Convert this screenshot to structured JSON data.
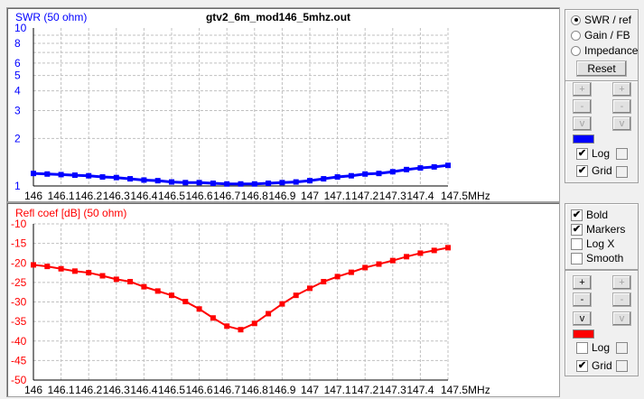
{
  "title": "gtv2_6m_mod146_5mhz.out",
  "colors": {
    "swr": "#0000ff",
    "refl": "#ff0000"
  },
  "chart_data": [
    {
      "type": "line",
      "title": "gtv2_6m_mod146_5mhz.out",
      "ylabel": "SWR (50 ohm)",
      "xlabel": "MHz",
      "yscale": "log",
      "ylim": [
        1,
        10
      ],
      "yticks": [
        1,
        2,
        3,
        4,
        5,
        6,
        8,
        10
      ],
      "ygrid": [
        2,
        3,
        4,
        5,
        6,
        7,
        8,
        9
      ],
      "xticks": [
        "146",
        "146.1",
        "146.2",
        "146.3",
        "146.4",
        "146.5",
        "146.6",
        "146.7",
        "146.8",
        "146.9",
        "147",
        "147.1",
        "147.2",
        "147.3",
        "147.4",
        "147.5"
      ],
      "xlim": [
        146,
        147.5
      ],
      "x_last_label": "147.5MHz",
      "x": [
        146,
        146.05,
        146.1,
        146.15,
        146.2,
        146.25,
        146.3,
        146.35,
        146.4,
        146.45,
        146.5,
        146.55,
        146.6,
        146.65,
        146.7,
        146.75,
        146.8,
        146.85,
        146.9,
        146.95,
        147,
        147.05,
        147.1,
        147.15,
        147.2,
        147.25,
        147.3,
        147.35,
        147.4,
        147.45,
        147.5
      ],
      "values": [
        1.2,
        1.19,
        1.18,
        1.17,
        1.16,
        1.14,
        1.13,
        1.11,
        1.09,
        1.08,
        1.06,
        1.05,
        1.05,
        1.04,
        1.03,
        1.03,
        1.03,
        1.04,
        1.05,
        1.06,
        1.08,
        1.11,
        1.14,
        1.16,
        1.19,
        1.2,
        1.23,
        1.27,
        1.3,
        1.32,
        1.35
      ]
    },
    {
      "type": "line",
      "ylabel": "Refl coef [dB] (50 ohm)",
      "xlabel": "MHz",
      "ylim": [
        -50,
        -10
      ],
      "yticks": [
        -10,
        -15,
        -20,
        -25,
        -30,
        -35,
        -40,
        -45,
        -50
      ],
      "xticks": [
        "146",
        "146.1",
        "146.2",
        "146.3",
        "146.4",
        "146.5",
        "146.6",
        "146.7",
        "146.8",
        "146.9",
        "147",
        "147.1",
        "147.2",
        "147.3",
        "147.4",
        "147.5"
      ],
      "xlim": [
        146,
        147.5
      ],
      "x_last_label": "147.5MHz",
      "x": [
        146,
        146.05,
        146.1,
        146.15,
        146.2,
        146.25,
        146.3,
        146.35,
        146.4,
        146.45,
        146.5,
        146.55,
        146.6,
        146.65,
        146.7,
        146.75,
        146.8,
        146.85,
        146.9,
        146.95,
        147,
        147.05,
        147.1,
        147.15,
        147.2,
        147.25,
        147.3,
        147.35,
        147.4,
        147.45,
        147.5
      ],
      "values": [
        -20.5,
        -20.9,
        -21.5,
        -22.1,
        -22.5,
        -23.3,
        -24.2,
        -24.8,
        -26.1,
        -27.2,
        -28.3,
        -29.9,
        -31.8,
        -34.1,
        -36.2,
        -37.1,
        -35.5,
        -33.0,
        -30.5,
        -28.3,
        -26.5,
        -24.8,
        -23.5,
        -22.4,
        -21.2,
        -20.3,
        -19.4,
        -18.4,
        -17.5,
        -16.8,
        -16.1
      ]
    }
  ],
  "controls": {
    "radios": [
      {
        "label": "SWR / ref",
        "checked": true
      },
      {
        "label": "Gain / FB",
        "checked": false
      },
      {
        "label": "Impedance",
        "checked": false
      }
    ],
    "reset": "Reset",
    "plus": "+",
    "minus": "-",
    "down": "v",
    "log": "Log",
    "grid": "Grid",
    "bold": "Bold",
    "markers": "Markers",
    "logx": "Log X",
    "smooth": "Smooth"
  }
}
